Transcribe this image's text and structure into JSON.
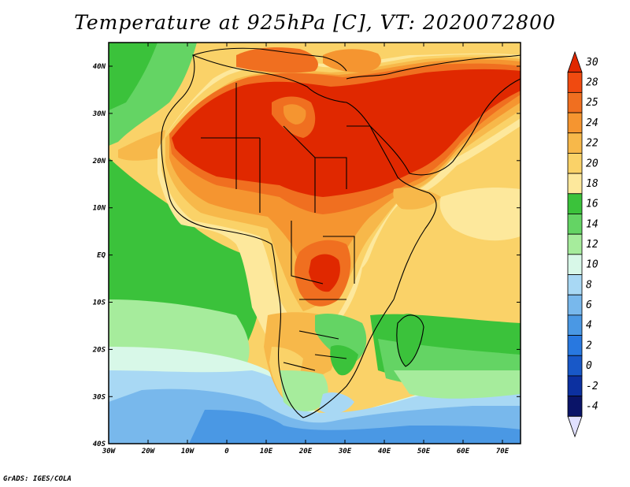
{
  "title": "Temperature at 925hPa [C], VT: 2020072800",
  "footer": "GrADS: IGES/COLA",
  "map": {
    "lon_labels": [
      "30W",
      "20W",
      "10W",
      "0",
      "10E",
      "20E",
      "30E",
      "40E",
      "50E",
      "60E",
      "70E"
    ],
    "lat_labels": [
      "40N",
      "30N",
      "20N",
      "10N",
      "EQ",
      "10S",
      "20S",
      "30S",
      "40S"
    ]
  },
  "colorbar": {
    "levels": [
      "30",
      "28",
      "25",
      "24",
      "22",
      "20",
      "18",
      "16",
      "14",
      "12",
      "10",
      "8",
      "6",
      "4",
      "2",
      "0",
      "-2",
      "-4"
    ],
    "colors": [
      "#e02800",
      "#f04a10",
      "#f06f20",
      "#f59530",
      "#f7b84a",
      "#fad268",
      "#fde89c",
      "#3bc23b",
      "#64d464",
      "#a6ec9c",
      "#d8f8e8",
      "#a8d8f4",
      "#78b8ec",
      "#4a98e4",
      "#2878e0",
      "#1858c8",
      "#0c30a0",
      "#0a1468"
    ]
  },
  "chart_data": {
    "type": "heatmap",
    "title": "Temperature at 925hPa [C], VT: 2020072800",
    "variable": "Temperature at 925hPa",
    "units": "C",
    "valid_time": "2020072800",
    "lon_range": [
      "30W",
      "75E"
    ],
    "lat_range": [
      "40S",
      "45N"
    ],
    "color_levels": [
      -4,
      -2,
      0,
      2,
      4,
      6,
      8,
      10,
      12,
      14,
      16,
      18,
      20,
      22,
      24,
      25,
      28,
      30
    ]
  }
}
